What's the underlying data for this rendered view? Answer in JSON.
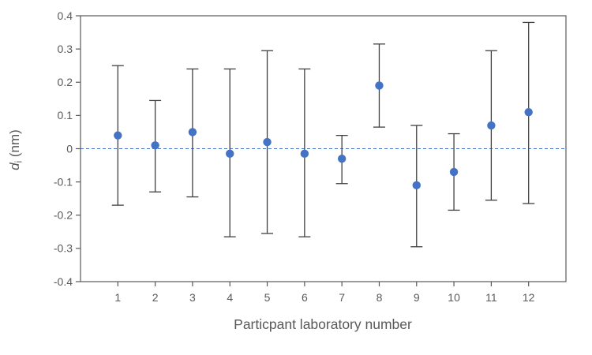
{
  "page": {
    "background": "#ffffff"
  },
  "chart_data": {
    "type": "scatter",
    "title": "",
    "xlabel": "Particpant laboratory number",
    "ylabel": {
      "variable": "d",
      "subscript": "i",
      "unit": " (nm)"
    },
    "legend": "none",
    "grid": false,
    "xlim": [
      0,
      13
    ],
    "ylim": [
      -0.4,
      0.4
    ],
    "x": [
      1,
      2,
      3,
      4,
      5,
      6,
      7,
      8,
      9,
      10,
      11,
      12
    ],
    "xtick_labels": [
      "1",
      "2",
      "3",
      "4",
      "5",
      "6",
      "7",
      "8",
      "9",
      "10",
      "11",
      "12"
    ],
    "yticks": [
      0.4,
      0.3,
      0.2,
      0.1,
      0,
      -0.1,
      -0.2,
      -0.3,
      -0.4
    ],
    "ytick_labels": [
      "0.4",
      "0.3",
      "0.2",
      "0.1",
      "0",
      "-0.1",
      "-0.2",
      "-0.3",
      "-0.4"
    ],
    "zero_line": {
      "value": 0,
      "style": "dashed",
      "color": "#4472C4"
    },
    "series": [
      {
        "name": "di",
        "marker": "circle",
        "color": "#4472C4",
        "d_values": [
          0.04,
          0.01,
          0.05,
          -0.015,
          0.02,
          -0.015,
          -0.03,
          0.19,
          -0.11,
          -0.07,
          0.07,
          0.11
        ],
        "error_upper": [
          0.25,
          0.145,
          0.24,
          0.24,
          0.295,
          0.24,
          0.04,
          0.315,
          0.07,
          0.045,
          0.295,
          0.38
        ],
        "error_lower": [
          -0.17,
          -0.13,
          -0.145,
          -0.265,
          -0.255,
          -0.265,
          -0.105,
          0.065,
          -0.295,
          -0.185,
          -0.155,
          -0.165
        ]
      }
    ],
    "colors": {
      "marker": "#4472C4",
      "error_bar": "#404040",
      "axis_line": "#595959",
      "tick_label": "#595959",
      "axis_title": "#595959",
      "zero_line": "#4472C4"
    }
  }
}
